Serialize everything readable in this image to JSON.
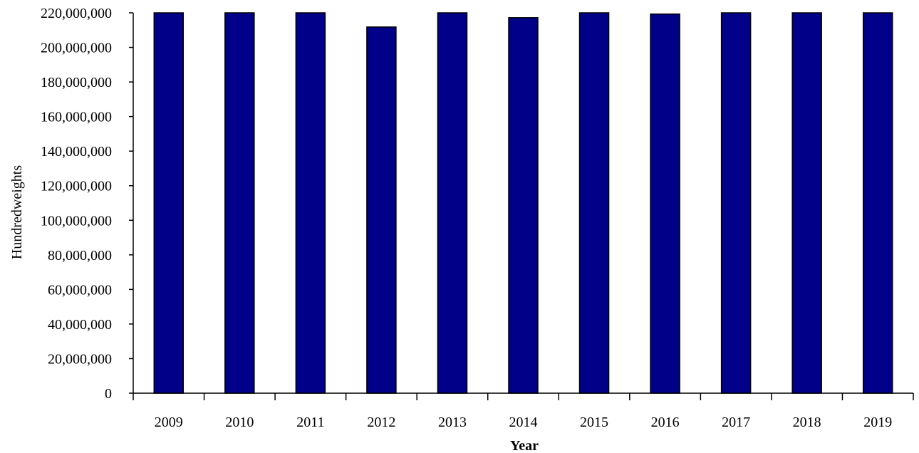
{
  "chart_data": {
    "type": "bar",
    "title": "",
    "xlabel": "Year",
    "ylabel": "Hundredweights",
    "categories": [
      "2009",
      "2010",
      "2011",
      "2012",
      "2013",
      "2014",
      "2015",
      "2016",
      "2017",
      "2018",
      "2019"
    ],
    "values": [
      220000000,
      220000000,
      220000000,
      211800000,
      220000000,
      217200000,
      220000000,
      219300000,
      220000000,
      220000000,
      220000000
    ],
    "ylim": [
      0,
      220000000
    ],
    "yticks": [
      "0",
      "20,000,000",
      "40,000,000",
      "60,000,000",
      "80,000,000",
      "100,000,000",
      "120,000,000",
      "140,000,000",
      "160,000,000",
      "180,000,000",
      "200,000,000",
      "220,000,000"
    ],
    "grid": false,
    "legend": "none",
    "bar_color": "#000088"
  }
}
